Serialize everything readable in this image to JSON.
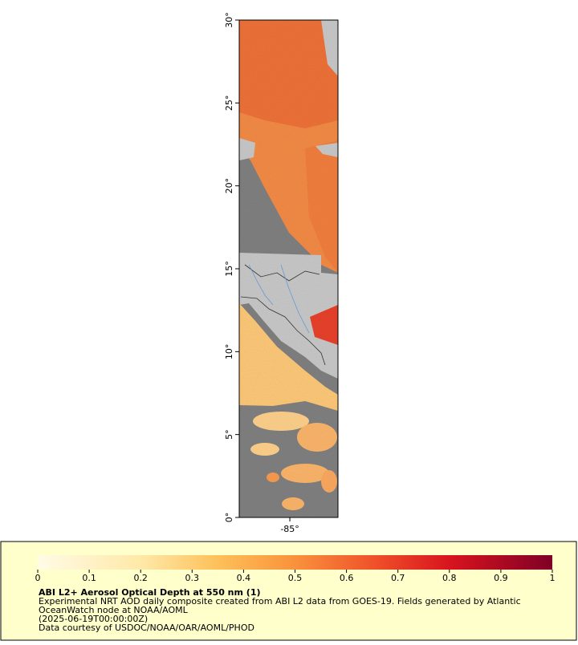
{
  "map": {
    "ylim": [
      0,
      30
    ],
    "xlim": [
      -88.05,
      -82.1
    ],
    "yticks": [
      {
        "value": 0,
        "label": "0°"
      },
      {
        "value": 5,
        "label": "5°"
      },
      {
        "value": 10,
        "label": "10°"
      },
      {
        "value": 15,
        "label": "15°"
      },
      {
        "value": 20,
        "label": "20°"
      },
      {
        "value": 25,
        "label": "25°"
      },
      {
        "value": 30,
        "label": "30°"
      }
    ],
    "xticks": [
      {
        "value": -85,
        "label": "-85°"
      }
    ]
  },
  "colorbar": {
    "range": [
      0,
      1
    ],
    "ticks": [
      0,
      0.1,
      0.2,
      0.3,
      0.4,
      0.5,
      0.6,
      0.7,
      0.8,
      0.9,
      1
    ]
  },
  "legend": {
    "title": "ABI L2+ Aerosol Optical Depth at 550 nm (1)",
    "lines": [
      "Experimental NRT AOD daily composite created from ABI L2 data from GOES-19. Fields generated by Atlantic",
      "OceanWatch node at NOAA/AOML",
      "(2025-06-19T00:00:00Z)",
      "Data courtesy of USDOC/NOAA/OAR/AOML/PHOD"
    ]
  }
}
